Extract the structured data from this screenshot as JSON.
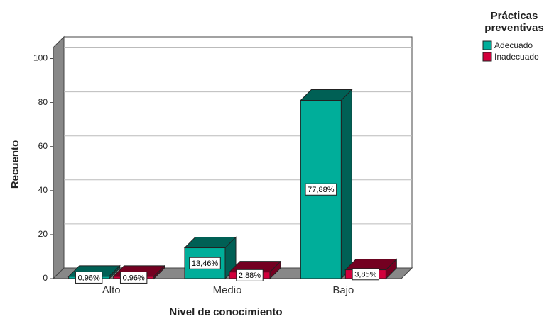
{
  "chart_data": {
    "type": "bar3d",
    "x_label": "Nivel de conocimiento",
    "y_label": "Recuento",
    "legend_title": "Prácticas preventivas",
    "legend": "top-right",
    "categories": [
      "Alto",
      "Medio",
      "Bajo"
    ],
    "series": [
      {
        "name": "Adecuado",
        "color": "#00ae9a",
        "values": [
          1,
          14,
          81
        ],
        "value_labels": [
          "0,96%",
          "13,46%",
          "77,88%"
        ]
      },
      {
        "name": "Inadecuado",
        "color": "#d2003c",
        "values": [
          1,
          3,
          4
        ],
        "value_labels": [
          "0,96%",
          "2,88%",
          "3,85%"
        ]
      }
    ],
    "ylim": [
      0,
      105
    ],
    "yticks": [
      0,
      20,
      40,
      60,
      80,
      100
    ],
    "grid": true
  }
}
